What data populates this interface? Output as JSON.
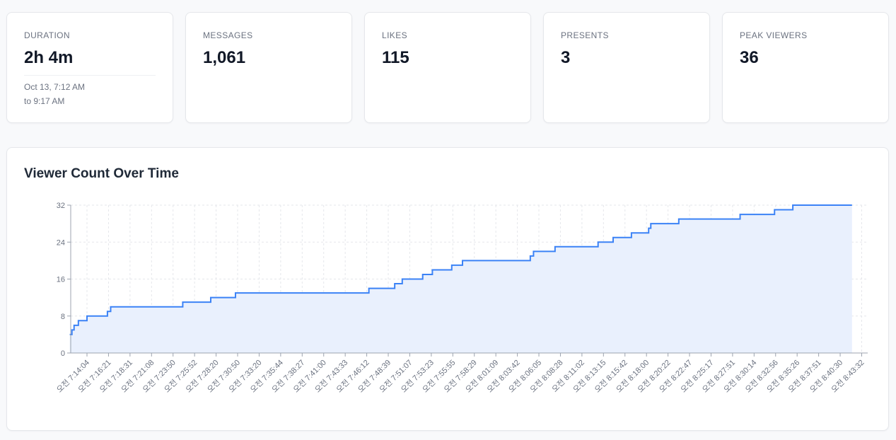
{
  "stats": [
    {
      "label": "DURATION",
      "value": "2h 4m",
      "sub_line1": "Oct 13, 7:12 AM",
      "sub_line2": "to 9:17 AM"
    },
    {
      "label": "MESSAGES",
      "value": "1,061"
    },
    {
      "label": "LIKES",
      "value": "115"
    },
    {
      "label": "PRESENTS",
      "value": "3"
    },
    {
      "label": "PEAK VIEWERS",
      "value": "36"
    }
  ],
  "colors": {
    "line": "#3b82f6",
    "fill": "#e9f0fd",
    "grid": "#e5e7eb",
    "axis": "#9ca3af"
  },
  "chart_data": {
    "type": "area",
    "title": "Viewer Count Over Time",
    "xlabel": "",
    "ylabel": "",
    "ylim": [
      0,
      32
    ],
    "yticks": [
      0,
      8,
      16,
      24,
      32
    ],
    "x": [
      "오전 7:14:04",
      "오전 7:16:21",
      "오전 7:18:31",
      "오전 7:21:08",
      "오전 7:23:50",
      "오전 7:25:52",
      "오전 7:28:20",
      "오전 7:30:50",
      "오전 7:33:20",
      "오전 7:35:44",
      "오전 7:38:27",
      "오전 7:41:00",
      "오전 7:43:33",
      "오전 7:46:12",
      "오전 7:48:39",
      "오전 7:51:07",
      "오전 7:53:23",
      "오전 7:55:55",
      "오전 7:58:29",
      "오전 8:01:09",
      "오전 8:03:42",
      "오전 8:06:05",
      "오전 8:08:28",
      "오전 8:11:02",
      "오전 8:13:15",
      "오전 8:15:42",
      "오전 8:18:00",
      "오전 8:20:22",
      "오전 8:22:47",
      "오전 8:25:17",
      "오전 8:27:51",
      "오전 8:30:14",
      "오전 8:32:56",
      "오전 8:35:26",
      "오전 8:37:51",
      "오전 8:40:30",
      "오전 8:43:32"
    ],
    "step_points": [
      [
        -0.8,
        4
      ],
      [
        -0.7,
        5
      ],
      [
        -0.6,
        6
      ],
      [
        -0.4,
        7
      ],
      [
        0.0,
        8
      ],
      [
        0.95,
        9
      ],
      [
        1.1,
        10
      ],
      [
        4.45,
        11
      ],
      [
        5.75,
        12
      ],
      [
        6.9,
        13
      ],
      [
        13.1,
        14
      ],
      [
        14.3,
        15
      ],
      [
        14.65,
        16
      ],
      [
        15.6,
        17
      ],
      [
        16.05,
        18
      ],
      [
        16.95,
        19
      ],
      [
        17.45,
        20
      ],
      [
        20.6,
        21
      ],
      [
        20.75,
        22
      ],
      [
        21.75,
        23
      ],
      [
        23.75,
        24
      ],
      [
        24.45,
        25
      ],
      [
        25.3,
        26
      ],
      [
        26.1,
        27
      ],
      [
        26.2,
        28
      ],
      [
        27.5,
        29
      ],
      [
        30.35,
        30
      ],
      [
        31.95,
        31
      ],
      [
        32.8,
        32
      ],
      [
        35.55,
        32
      ]
    ]
  }
}
